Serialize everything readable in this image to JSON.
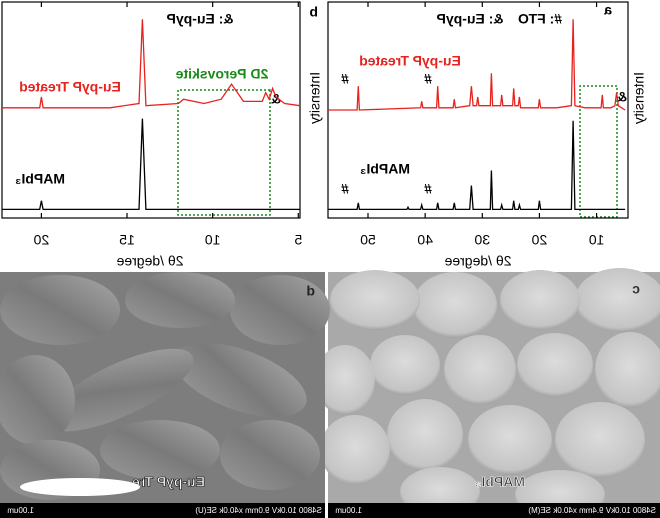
{
  "chart_data": [
    {
      "type": "line",
      "panel_label": "a",
      "xlabel": "2θ /degree",
      "ylabel": "Intensity",
      "xlim": [
        4.5,
        57
      ],
      "ylim": [
        0,
        100
      ],
      "xticks": [
        10,
        20,
        30,
        40,
        50
      ],
      "annotations": [
        "#: FTO",
        "&: Eu-pyP"
      ],
      "fto_marker": "#",
      "eu_marker": "&",
      "series": [
        {
          "name": "Eu-pyP Treated",
          "color": "#e8221e",
          "x": [
            5,
            6.2,
            6.5,
            6.8,
            7.5,
            8.8,
            9.0,
            9.2,
            12,
            13.8,
            14.1,
            14.4,
            17,
            19.8,
            20.0,
            20.2,
            23.3,
            23.5,
            23.7,
            24.3,
            24.5,
            24.7,
            26.4,
            26.6,
            26.8,
            28.2,
            28.4,
            28.6,
            30.6,
            30.8,
            31.0,
            31.6,
            31.9,
            32.2,
            34.7,
            34.9,
            35.1,
            37.6,
            37.8,
            38.0,
            40.4,
            40.6,
            40.8,
            51.5,
            51.7,
            51.9,
            57
          ],
          "values": [
            50,
            52,
            58,
            52,
            51,
            51,
            57,
            51,
            51,
            52,
            92,
            52,
            51,
            51,
            55,
            51,
            51,
            56,
            52,
            52,
            60,
            52,
            52,
            57,
            52,
            52,
            67,
            52,
            52,
            56,
            52,
            52,
            61,
            52,
            51,
            55,
            51,
            51,
            61,
            51,
            51,
            54,
            51,
            50,
            61,
            50,
            50
          ]
        },
        {
          "name": "MAPbI₃",
          "color": "#000000",
          "x": [
            5,
            13.8,
            14.1,
            14.4,
            19.8,
            20.0,
            20.2,
            23.3,
            23.5,
            23.7,
            24.3,
            24.5,
            24.7,
            26.4,
            26.6,
            26.8,
            28.2,
            28.4,
            28.6,
            31.6,
            31.9,
            32.2,
            34.7,
            34.9,
            35.1,
            37.6,
            37.8,
            38.0,
            40.4,
            40.6,
            40.8,
            42.8,
            43.0,
            43.2,
            51.5,
            51.7,
            51.9,
            57
          ],
          "values": [
            4,
            4,
            45,
            4,
            4,
            8,
            4,
            4,
            6,
            4,
            4,
            8,
            4,
            4,
            6,
            4,
            4,
            22,
            4,
            4,
            15,
            4,
            4,
            7,
            4,
            4,
            7,
            4,
            4,
            6,
            4,
            4,
            5,
            4,
            4,
            7,
            4,
            4
          ]
        }
      ]
    },
    {
      "type": "line",
      "panel_label": "b",
      "xlabel": "2θ /degree",
      "ylabel": "Intensity",
      "xlim": [
        4.9,
        22.3
      ],
      "ylim": [
        0,
        100
      ],
      "xticks": [
        5,
        10,
        15,
        20
      ],
      "annotations": [
        "&: Eu-pyP",
        "2D Perovskite"
      ],
      "eu_marker": "&",
      "series": [
        {
          "name": "Eu-pyP Treated",
          "color": "#e8221e",
          "x": [
            4.9,
            5.8,
            6.3,
            6.5,
            6.7,
            6.9,
            7.1,
            8.2,
            8.9,
            9.5,
            10.5,
            11.7,
            12,
            13.9,
            14.1,
            14.3,
            16,
            19.9,
            20.0,
            20.1,
            22.3
          ],
          "values": [
            52,
            53,
            56,
            60,
            55,
            58,
            54,
            54,
            62,
            55,
            53,
            55,
            53,
            52,
            92,
            53,
            51,
            51,
            56,
            51,
            51
          ]
        },
        {
          "name": "MAPbI₃",
          "color": "#000000",
          "x": [
            4.9,
            13.9,
            14.1,
            14.3,
            19.9,
            20.0,
            20.1,
            22.3
          ],
          "values": [
            4,
            4,
            46,
            4,
            4,
            8,
            4,
            4
          ]
        }
      ]
    }
  ],
  "images": [
    {
      "label": "c",
      "caption": "MAPbI₃",
      "info": "S4800 10.0kV 9.4mm x40.0k SE(M)",
      "scale": "1.00um"
    },
    {
      "label": "d",
      "caption": "Eu-pyP Tre",
      "info": "S4800 10.0kV 9.0mm x40.0k SE(U)",
      "scale": "1.00um"
    }
  ]
}
